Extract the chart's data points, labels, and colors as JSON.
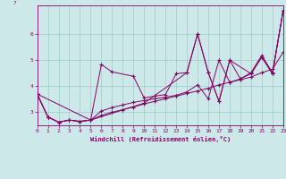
{
  "background_color": "#cce8e8",
  "grid_color": "#99cccc",
  "line_color": "#880066",
  "xlim": [
    0,
    23
  ],
  "ylim": [
    2.5,
    7.1
  ],
  "yticks": [
    3,
    4,
    5,
    6
  ],
  "xticks": [
    0,
    1,
    2,
    3,
    4,
    5,
    6,
    7,
    8,
    9,
    10,
    11,
    12,
    13,
    14,
    15,
    16,
    17,
    18,
    19,
    20,
    21,
    22,
    23
  ],
  "xlabel": "Windchill (Refroidissement éolien,°C)",
  "series": [
    {
      "x": [
        0,
        1,
        2,
        3,
        4,
        5,
        6,
        7,
        9,
        10,
        11,
        12,
        13,
        14,
        15,
        16,
        17,
        18,
        20,
        21,
        22,
        23
      ],
      "y": [
        3.7,
        2.82,
        2.62,
        2.7,
        2.65,
        2.7,
        4.83,
        4.55,
        4.38,
        3.55,
        3.62,
        3.68,
        4.48,
        4.52,
        6.0,
        4.52,
        3.42,
        5.0,
        4.48,
        5.12,
        4.48,
        6.9
      ]
    },
    {
      "x": [
        0,
        1,
        2,
        3,
        4,
        5,
        6,
        7,
        8,
        9,
        10,
        11,
        12,
        13,
        14,
        15,
        16,
        17,
        18,
        19,
        20,
        21,
        22,
        23
      ],
      "y": [
        3.7,
        2.82,
        2.62,
        2.7,
        2.65,
        2.7,
        2.88,
        3.0,
        3.1,
        3.2,
        3.32,
        3.42,
        3.52,
        3.62,
        3.72,
        3.82,
        3.92,
        4.05,
        4.15,
        4.25,
        4.35,
        4.52,
        4.65,
        5.3
      ]
    },
    {
      "x": [
        0,
        1,
        2,
        3,
        4,
        5,
        6,
        7,
        8,
        9,
        10,
        11,
        12,
        13,
        14,
        15,
        16,
        17,
        18,
        19,
        20,
        21,
        22,
        23
      ],
      "y": [
        3.7,
        2.82,
        2.62,
        2.7,
        2.65,
        2.7,
        3.05,
        3.18,
        3.28,
        3.38,
        3.45,
        3.52,
        3.58,
        3.65,
        3.78,
        4.05,
        3.52,
        5.0,
        4.15,
        4.28,
        4.52,
        5.18,
        4.52,
        6.9
      ]
    },
    {
      "x": [
        0,
        5,
        10,
        14,
        15,
        16,
        17,
        18,
        19,
        20,
        21,
        22,
        23
      ],
      "y": [
        3.7,
        2.7,
        3.35,
        4.52,
        6.0,
        4.52,
        3.42,
        5.0,
        4.28,
        4.48,
        5.12,
        4.48,
        6.9
      ]
    }
  ]
}
